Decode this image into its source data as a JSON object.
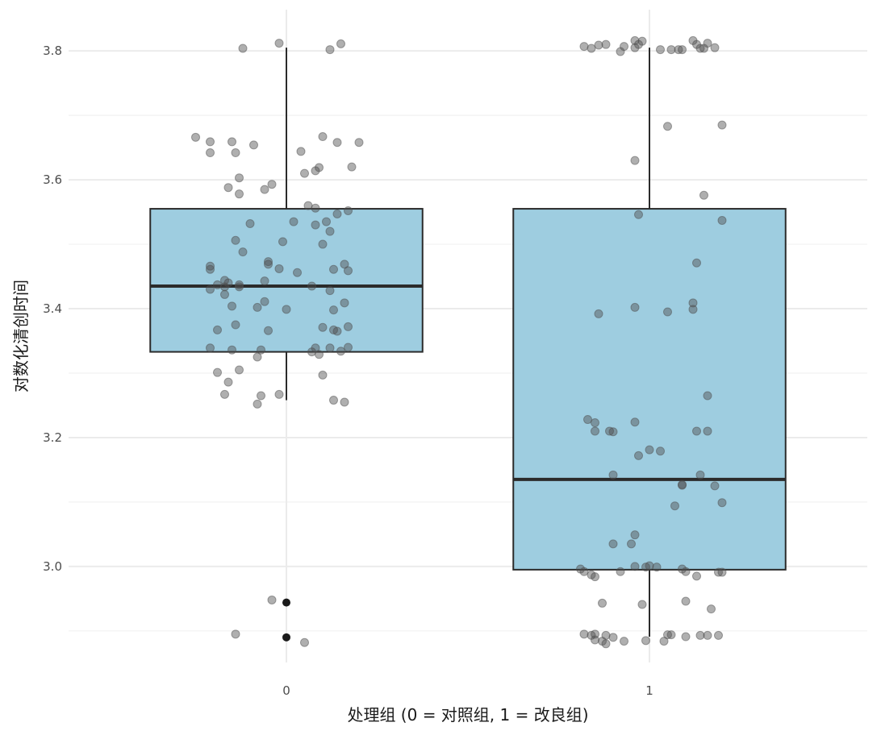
{
  "chart_data": {
    "type": "boxplot",
    "title": "",
    "xlabel": "处理组 (0 = 对照组, 1 = 改良组)",
    "ylabel": "对数化清创时间",
    "categories": [
      "0",
      "1"
    ],
    "xlim": [
      -0.6,
      1.6
    ],
    "ylim": [
      2.851,
      3.864
    ],
    "yticks": [
      3.0,
      3.2,
      3.4,
      3.6,
      3.8
    ],
    "ytick_labels": [
      "3.0",
      "3.2",
      "3.4",
      "3.6",
      "3.8"
    ],
    "grid": true,
    "legend": "none",
    "colors": {
      "box_fill": "#9ecde0",
      "box_stroke": "#2b2b2b",
      "point": "#4d4d4d",
      "outlier": "#1a1a1a",
      "grid": "#ebebeb"
    },
    "boxes": [
      {
        "category": "0",
        "q1": 3.333,
        "median": 3.435,
        "q3": 3.555,
        "whisker_low": 3.258,
        "whisker_high": 3.805,
        "outliers": [
          2.944,
          2.89
        ]
      },
      {
        "category": "1",
        "q1": 2.995,
        "median": 3.135,
        "q3": 3.555,
        "whisker_low": 2.891,
        "whisker_high": 3.805,
        "outliers": []
      }
    ],
    "jitter_points": [
      {
        "category": "0",
        "points": [
          [
            -0.02,
            3.812
          ],
          [
            -0.12,
            3.804
          ],
          [
            0.15,
            3.811
          ],
          [
            0.12,
            3.802
          ],
          [
            -0.25,
            3.666
          ],
          [
            0.1,
            3.667
          ],
          [
            0.14,
            3.658
          ],
          [
            0.2,
            3.658
          ],
          [
            -0.09,
            3.654
          ],
          [
            -0.21,
            3.659
          ],
          [
            -0.15,
            3.659
          ],
          [
            0.04,
            3.644
          ],
          [
            -0.14,
            3.642
          ],
          [
            -0.21,
            3.642
          ],
          [
            0.09,
            3.619
          ],
          [
            0.08,
            3.614
          ],
          [
            0.05,
            3.61
          ],
          [
            -0.13,
            3.603
          ],
          [
            0.18,
            3.62
          ],
          [
            -0.16,
            3.588
          ],
          [
            -0.04,
            3.593
          ],
          [
            -0.06,
            3.585
          ],
          [
            -0.13,
            3.578
          ],
          [
            0.06,
            3.56
          ],
          [
            0.08,
            3.556
          ],
          [
            0.17,
            3.552
          ],
          [
            0.14,
            3.547
          ],
          [
            0.11,
            3.535
          ],
          [
            -0.1,
            3.532
          ],
          [
            0.02,
            3.535
          ],
          [
            0.08,
            3.53
          ],
          [
            0.12,
            3.52
          ],
          [
            -0.14,
            3.506
          ],
          [
            -0.01,
            3.504
          ],
          [
            0.1,
            3.5
          ],
          [
            -0.12,
            3.488
          ],
          [
            -0.05,
            3.473
          ],
          [
            -0.05,
            3.469
          ],
          [
            0.16,
            3.469
          ],
          [
            0.17,
            3.459
          ],
          [
            0.03,
            3.456
          ],
          [
            -0.21,
            3.466
          ],
          [
            -0.21,
            3.461
          ],
          [
            0.13,
            3.461
          ],
          [
            -0.02,
            3.462
          ],
          [
            -0.17,
            3.444
          ],
          [
            -0.06,
            3.443
          ],
          [
            -0.16,
            3.44
          ],
          [
            -0.19,
            3.437
          ],
          [
            -0.13,
            3.437
          ],
          [
            -0.13,
            3.434
          ],
          [
            0.07,
            3.435
          ],
          [
            -0.17,
            3.434
          ],
          [
            0.12,
            3.428
          ],
          [
            -0.21,
            3.43
          ],
          [
            -0.17,
            3.422
          ],
          [
            0.16,
            3.409
          ],
          [
            -0.15,
            3.404
          ],
          [
            -0.06,
            3.411
          ],
          [
            -0.08,
            3.402
          ],
          [
            0.0,
            3.399
          ],
          [
            0.13,
            3.398
          ],
          [
            -0.14,
            3.375
          ],
          [
            -0.19,
            3.367
          ],
          [
            0.1,
            3.371
          ],
          [
            -0.05,
            3.366
          ],
          [
            0.13,
            3.367
          ],
          [
            0.14,
            3.365
          ],
          [
            0.17,
            3.372
          ],
          [
            0.17,
            3.34
          ],
          [
            0.12,
            3.339
          ],
          [
            0.08,
            3.339
          ],
          [
            0.15,
            3.334
          ],
          [
            -0.07,
            3.336
          ],
          [
            0.07,
            3.333
          ],
          [
            -0.21,
            3.339
          ],
          [
            0.09,
            3.329
          ],
          [
            -0.08,
            3.325
          ],
          [
            -0.15,
            3.336
          ],
          [
            -0.13,
            3.305
          ],
          [
            -0.19,
            3.301
          ],
          [
            0.1,
            3.297
          ],
          [
            -0.16,
            3.286
          ],
          [
            -0.17,
            3.267
          ],
          [
            -0.07,
            3.265
          ],
          [
            -0.02,
            3.267
          ],
          [
            0.13,
            3.258
          ],
          [
            0.16,
            3.255
          ],
          [
            -0.08,
            3.252
          ],
          [
            -0.04,
            2.948
          ],
          [
            -0.14,
            2.895
          ],
          [
            0.05,
            2.882
          ]
        ]
      },
      {
        "category": "1",
        "points": [
          [
            -0.18,
            3.807
          ],
          [
            -0.14,
            3.809
          ],
          [
            -0.12,
            3.81
          ],
          [
            -0.04,
            3.816
          ],
          [
            -0.02,
            3.815
          ],
          [
            -0.03,
            3.81
          ],
          [
            -0.07,
            3.807
          ],
          [
            -0.08,
            3.799
          ],
          [
            -0.16,
            3.804
          ],
          [
            -0.04,
            3.805
          ],
          [
            0.03,
            3.802
          ],
          [
            0.08,
            3.802
          ],
          [
            0.12,
            3.816
          ],
          [
            0.13,
            3.81
          ],
          [
            0.16,
            3.812
          ],
          [
            0.09,
            3.802
          ],
          [
            0.15,
            3.804
          ],
          [
            0.18,
            3.805
          ],
          [
            0.06,
            3.802
          ],
          [
            0.14,
            3.804
          ],
          [
            0.05,
            3.683
          ],
          [
            0.2,
            3.685
          ],
          [
            -0.04,
            3.63
          ],
          [
            0.15,
            3.576
          ],
          [
            0.2,
            3.537
          ],
          [
            -0.03,
            3.546
          ],
          [
            0.13,
            3.471
          ],
          [
            -0.14,
            3.392
          ],
          [
            -0.04,
            3.402
          ],
          [
            0.05,
            3.395
          ],
          [
            0.12,
            3.399
          ],
          [
            0.12,
            3.409
          ],
          [
            0.16,
            3.265
          ],
          [
            -0.17,
            3.228
          ],
          [
            -0.15,
            3.223
          ],
          [
            -0.04,
            3.224
          ],
          [
            -0.15,
            3.21
          ],
          [
            -0.11,
            3.21
          ],
          [
            -0.1,
            3.209
          ],
          [
            0.13,
            3.21
          ],
          [
            0.16,
            3.21
          ],
          [
            0.0,
            3.181
          ],
          [
            0.03,
            3.179
          ],
          [
            -0.03,
            3.172
          ],
          [
            -0.1,
            3.142
          ],
          [
            0.14,
            3.142
          ],
          [
            0.09,
            3.127
          ],
          [
            0.09,
            3.126
          ],
          [
            0.18,
            3.125
          ],
          [
            0.07,
            3.094
          ],
          [
            0.2,
            3.099
          ],
          [
            -0.04,
            3.049
          ],
          [
            -0.1,
            3.035
          ],
          [
            -0.05,
            3.035
          ],
          [
            -0.19,
            2.996
          ],
          [
            -0.18,
            2.992
          ],
          [
            -0.16,
            2.987
          ],
          [
            -0.15,
            2.984
          ],
          [
            -0.08,
            2.992
          ],
          [
            -0.04,
            3.0
          ],
          [
            0.0,
            3.001
          ],
          [
            0.02,
            2.999
          ],
          [
            -0.01,
            2.999
          ],
          [
            0.09,
            2.996
          ],
          [
            0.1,
            2.992
          ],
          [
            0.13,
            2.985
          ],
          [
            0.19,
            2.991
          ],
          [
            0.2,
            2.991
          ],
          [
            -0.13,
            2.943
          ],
          [
            -0.02,
            2.941
          ],
          [
            0.1,
            2.946
          ],
          [
            0.17,
            2.934
          ],
          [
            -0.18,
            2.895
          ],
          [
            -0.16,
            2.893
          ],
          [
            -0.15,
            2.886
          ],
          [
            -0.13,
            2.884
          ],
          [
            -0.1,
            2.89
          ],
          [
            -0.07,
            2.884
          ],
          [
            -0.01,
            2.885
          ],
          [
            0.05,
            2.894
          ],
          [
            0.06,
            2.894
          ],
          [
            0.1,
            2.891
          ],
          [
            0.14,
            2.893
          ],
          [
            0.16,
            2.893
          ],
          [
            0.19,
            2.893
          ],
          [
            0.04,
            2.884
          ],
          [
            -0.15,
            2.895
          ],
          [
            -0.12,
            2.88
          ],
          [
            -0.12,
            2.893
          ]
        ]
      }
    ],
    "box_width": 0.75
  }
}
